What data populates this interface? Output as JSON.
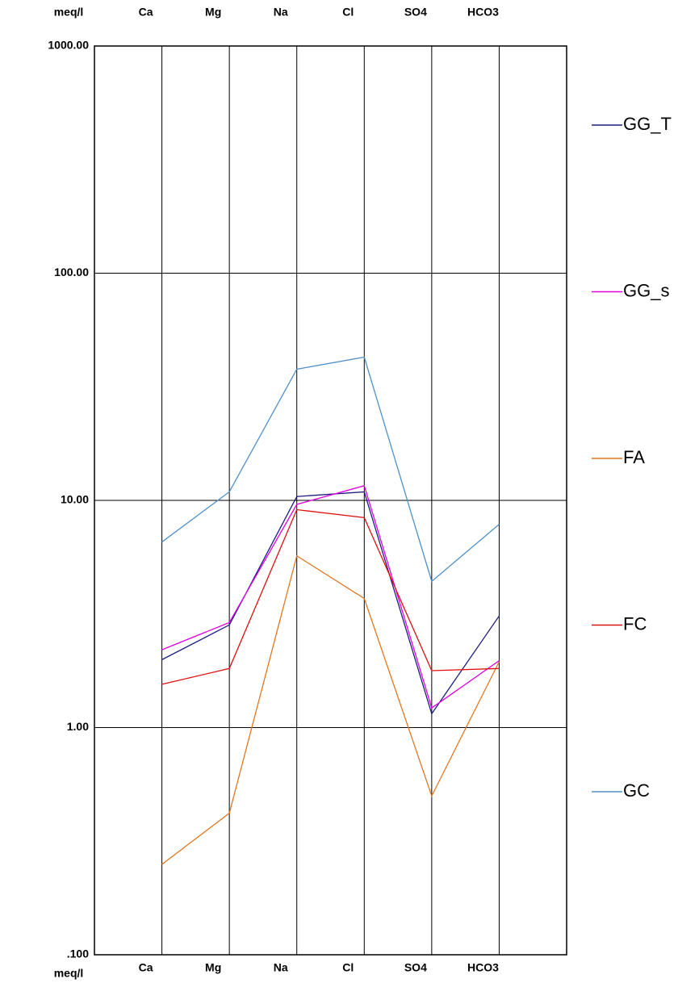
{
  "chart_data": {
    "type": "line",
    "y_label": "meq/l",
    "log_y": true,
    "grid": true,
    "legend": "right",
    "categories": [
      "Ca",
      "Mg",
      "Na",
      "Cl",
      "SO4",
      "HCO3"
    ],
    "ylim": [
      0.1,
      1000
    ],
    "yticks": [
      {
        "value": 0.1,
        "label": ".100"
      },
      {
        "value": 1,
        "label": "1.00"
      },
      {
        "value": 10,
        "label": "10.00"
      },
      {
        "value": 100,
        "label": "100.00"
      },
      {
        "value": 1000,
        "label": "1000.00"
      }
    ],
    "series": [
      {
        "name": "GG_T",
        "color": "#1c1c80",
        "values": [
          1.99,
          2.83,
          10.4,
          10.9,
          1.15,
          3.1
        ]
      },
      {
        "name": "GG_s",
        "color": "#e000e0",
        "values": [
          2.2,
          2.9,
          9.6,
          11.6,
          1.22,
          1.97
        ]
      },
      {
        "name": "FA",
        "color": "#e07820",
        "values": [
          0.25,
          0.42,
          5.7,
          3.7,
          0.5,
          1.95
        ]
      },
      {
        "name": "FC",
        "color": "#e01010",
        "values": [
          1.55,
          1.82,
          9.1,
          8.4,
          1.78,
          1.82
        ]
      },
      {
        "name": "GC",
        "color": "#5090c8",
        "values": [
          6.56,
          10.9,
          37.8,
          42.7,
          4.4,
          7.85
        ]
      }
    ]
  }
}
